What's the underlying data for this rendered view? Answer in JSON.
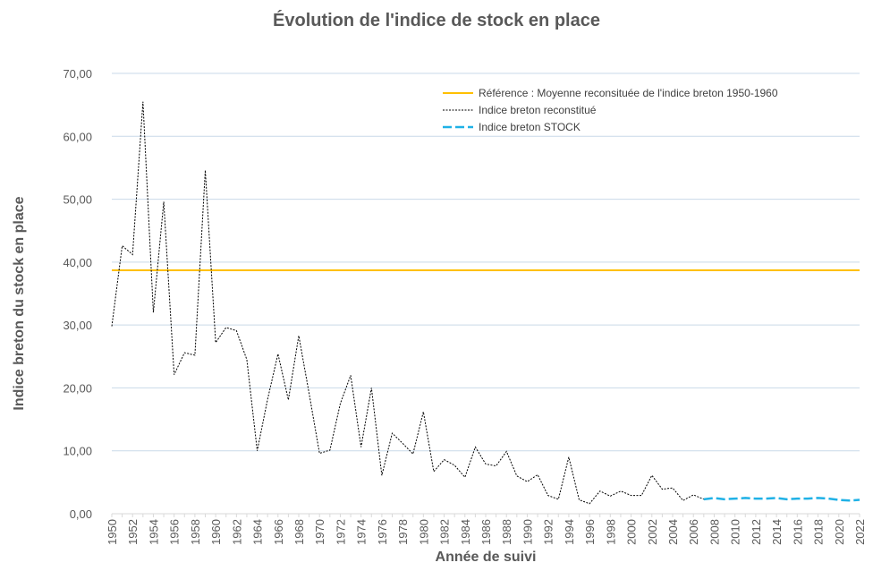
{
  "chart_data": {
    "type": "line",
    "title": "Évolution de l'indice de stock en place",
    "xlabel": "Année de suivi",
    "ylabel": "Indice breton du stock en place",
    "ylim": [
      0,
      70
    ],
    "yticks": [
      "0,00",
      "10,00",
      "20,00",
      "30,00",
      "40,00",
      "50,00",
      "60,00",
      "70,00"
    ],
    "xticks": [
      "1950",
      "1952",
      "1954",
      "1956",
      "1958",
      "1960",
      "1962",
      "1964",
      "1966",
      "1968",
      "1970",
      "1972",
      "1974",
      "1976",
      "1978",
      "1980",
      "1982",
      "1984",
      "1986",
      "1988",
      "1990",
      "1992",
      "1994",
      "1996",
      "1998",
      "2000",
      "2002",
      "2004",
      "2006",
      "2008",
      "2010",
      "2012",
      "2014",
      "2016",
      "2018",
      "2020",
      "2022"
    ],
    "x_range": [
      1950,
      2022
    ],
    "grid": true,
    "legend_position": "top-right",
    "series": [
      {
        "name": "Référence : Moyenne reconsituée de l'indice breton 1950-1960",
        "color": "#FFC000",
        "style": "solid",
        "x": [
          1950,
          2022
        ],
        "values": [
          38.7,
          38.7
        ]
      },
      {
        "name": "Indice breton reconstitué",
        "color": "#000000",
        "style": "dotted",
        "x": [
          1950,
          1951,
          1952,
          1953,
          1954,
          1955,
          1956,
          1957,
          1958,
          1959,
          1960,
          1961,
          1962,
          1963,
          1964,
          1965,
          1966,
          1967,
          1968,
          1969,
          1970,
          1971,
          1972,
          1973,
          1974,
          1975,
          1976,
          1977,
          1978,
          1979,
          1980,
          1981,
          1982,
          1983,
          1984,
          1985,
          1986,
          1987,
          1988,
          1989,
          1990,
          1991,
          1992,
          1993,
          1994,
          1995,
          1996,
          1997,
          1998,
          1999,
          2000,
          2001,
          2002,
          2003,
          2004,
          2005,
          2006,
          2007
        ],
        "values": [
          29.8,
          42.6,
          41.2,
          65.5,
          32.0,
          49.6,
          22.1,
          25.6,
          25.2,
          54.6,
          27.2,
          29.6,
          29.1,
          24.5,
          10.0,
          18.2,
          25.4,
          18.1,
          28.3,
          19.1,
          9.6,
          10.1,
          17.5,
          22.0,
          10.6,
          20.0,
          6.1,
          12.8,
          11.2,
          9.5,
          16.2,
          6.7,
          8.6,
          7.7,
          5.8,
          10.6,
          7.9,
          7.6,
          9.9,
          6.0,
          5.1,
          6.2,
          2.9,
          2.3,
          9.0,
          2.2,
          1.6,
          3.6,
          2.8,
          3.6,
          2.9,
          2.9,
          6.1,
          3.9,
          4.1,
          2.1,
          3.0,
          2.3
        ]
      },
      {
        "name": "Indice breton STOCK",
        "color": "#1FB1E6",
        "style": "dashed",
        "x": [
          2007,
          2008,
          2009,
          2010,
          2011,
          2012,
          2013,
          2014,
          2015,
          2016,
          2017,
          2018,
          2019,
          2020,
          2021,
          2022
        ],
        "values": [
          2.3,
          2.5,
          2.3,
          2.4,
          2.5,
          2.4,
          2.4,
          2.5,
          2.3,
          2.4,
          2.4,
          2.5,
          2.4,
          2.2,
          2.1,
          2.2
        ]
      }
    ]
  }
}
